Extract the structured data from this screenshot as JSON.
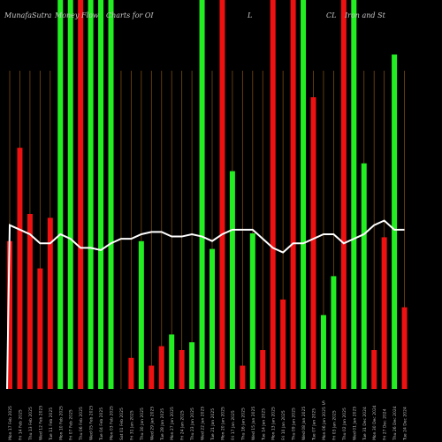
{
  "chart_data": {
    "type": "bar",
    "title_parts": [
      "MunafaSutra",
      "Money Flow",
      "Charts for OI",
      "L",
      "CL",
      "Iron and St"
    ],
    "categories": [
      "Mon 17 Feb 2025",
      "Fri 14 Feb 2025",
      "Thu 13 Feb 2025",
      "Wed 12 Feb 2025",
      "Tue 11 Feb 2025",
      "Mon 10 Feb 2025",
      "Fri 07 Feb 2025",
      "Thu 06 Feb 2025",
      "Wed 05 Feb 2025",
      "Tue 04 Feb 2025",
      "Mon 03 Feb 2025",
      "Sat 01 Feb 2025",
      "Fri 31 Jan 2025",
      "Thu 30 Jan 2025",
      "Wed 29 Jan 2025",
      "Tue 28 Jan 2025",
      "Mon 27 Jan 2025",
      "Fri 24 Jan 2025",
      "Thu 23 Jan 2025",
      "Wed 22 Jan 2025",
      "Tue 21 Jan 2025",
      "Mon 20 Jan 2025",
      "Fri 17 Jan 2025",
      "Thu 16 Jan 2025",
      "Wed 15 Jan 2025",
      "Tue 14 Jan 2025",
      "Mon 13 Jan 2025",
      "Fri 10 Jan 2025",
      "Thu 09 Jan 2025",
      "Wed 08 Jan 2025",
      "Tue 07 Jan 2025",
      "Mon 06 Jan 2025",
      "Fri 03 Jan 2025",
      "Thu 02 Jan 2025",
      "Wed 01 Jan 2025",
      "Tue 31 Dec 2024",
      "Mon 30 Dec 2024",
      "Fri 27 Dec 2024",
      "Thu 26 Dec 2024",
      "Tue 24 Dec 2024"
    ],
    "bar_colors": [
      "red",
      "red",
      "red",
      "red",
      "red",
      "green",
      "green",
      "red",
      "green",
      "green",
      "green",
      "red",
      "red",
      "green",
      "red",
      "red",
      "green",
      "red",
      "green",
      "green",
      "green",
      "red",
      "green",
      "red",
      "green",
      "red",
      "red",
      "red",
      "red",
      "green",
      "red",
      "green",
      "green",
      "red",
      "green",
      "green",
      "red",
      "red",
      "green",
      "red"
    ],
    "values": [
      0.38,
      0.62,
      0.45,
      0.31,
      0.44,
      1.0,
      1.0,
      1.0,
      1.0,
      1.0,
      1.0,
      0.0,
      0.08,
      0.38,
      0.06,
      0.11,
      0.14,
      0.1,
      0.12,
      1.0,
      0.36,
      1.0,
      0.56,
      0.06,
      0.4,
      0.1,
      1.0,
      0.23,
      1.0,
      1.0,
      0.75,
      0.19,
      0.29,
      1.0,
      1.0,
      0.58,
      0.1,
      0.39,
      0.86,
      0.21
    ],
    "price_line": [
      0.72,
      0.7,
      0.68,
      0.64,
      0.64,
      0.68,
      0.66,
      0.62,
      0.62,
      0.61,
      0.64,
      0.66,
      0.66,
      0.68,
      0.69,
      0.69,
      0.67,
      0.67,
      0.68,
      0.67,
      0.65,
      0.68,
      0.7,
      0.7,
      0.7,
      0.66,
      0.62,
      0.6,
      0.64,
      0.64,
      0.66,
      0.68,
      0.68,
      0.64,
      0.66,
      0.68,
      0.72,
      0.74,
      0.7,
      0.7
    ],
    "axis_mark": "S",
    "grid": "vertical-dashed",
    "colors": {
      "background": "#000000",
      "green": "#22ee22",
      "red": "#ee1111",
      "line": "#ffffff",
      "grid": "#7a4a10"
    }
  }
}
